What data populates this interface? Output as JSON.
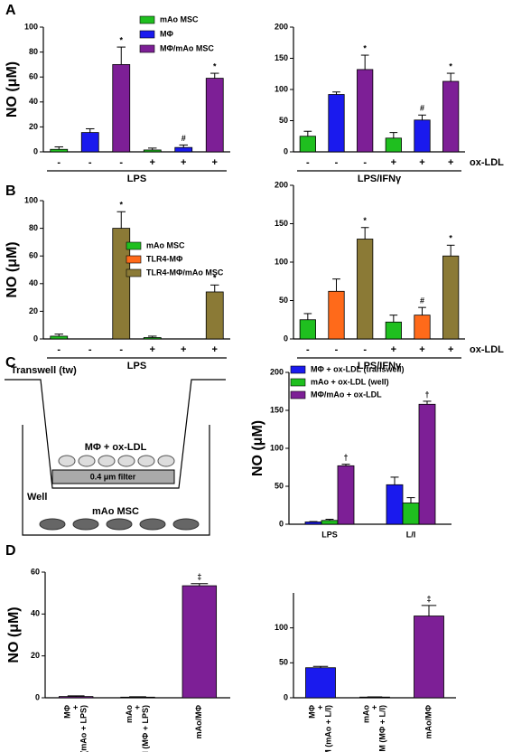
{
  "panel_labels": [
    "A",
    "B",
    "C",
    "D"
  ],
  "diagram": {
    "title": "Transwell (tw)",
    "insert_label": "MΦ + ox-LDL",
    "filter_label": "0.4 μm filter",
    "well_label": "Well",
    "bottom_label": "mAo MSC"
  },
  "chart_data": [
    {
      "type": "bar",
      "ylabel": "NO (μM)",
      "ylim": [
        0,
        100
      ],
      "yticks": [
        0,
        20,
        40,
        60,
        80,
        100
      ],
      "categories": [
        "-",
        "-",
        "-",
        "+",
        "+",
        "+"
      ],
      "group_label": "LPS",
      "series": [
        {
          "name": "mAo MSC",
          "color": "#1fbf1f",
          "values": [
            2,
            null,
            null,
            1.5,
            null,
            null
          ],
          "errors": [
            2,
            null,
            null,
            1.5,
            null,
            null
          ],
          "significance": [
            null,
            null,
            null,
            null,
            null,
            null
          ]
        },
        {
          "name": "MΦ",
          "color": "#1a1aee",
          "values": [
            null,
            15.5,
            null,
            null,
            3.5,
            null
          ],
          "errors": [
            null,
            3,
            null,
            null,
            2,
            null
          ],
          "significance": [
            null,
            null,
            null,
            null,
            "#",
            null
          ]
        },
        {
          "name": "MΦ/mAo MSC",
          "color": "#7d1f96",
          "values": [
            null,
            null,
            70,
            null,
            null,
            59
          ],
          "errors": [
            null,
            null,
            14,
            null,
            null,
            4
          ],
          "significance": [
            null,
            null,
            "*",
            null,
            null,
            "*"
          ]
        }
      ]
    },
    {
      "type": "bar",
      "ylim": [
        0,
        200
      ],
      "yticks": [
        0,
        50,
        100,
        150,
        200
      ],
      "categories": [
        "-",
        "-",
        "-",
        "+",
        "+",
        "+"
      ],
      "row_label": "ox-LDL",
      "group_label": "LPS/IFNγ",
      "values": [
        25,
        92,
        132,
        22,
        51,
        113
      ],
      "errors": [
        8,
        4,
        23,
        9,
        8,
        13
      ],
      "colors": [
        "#1fbf1f",
        "#1a1aee",
        "#7d1f96",
        "#1fbf1f",
        "#1a1aee",
        "#7d1f96"
      ],
      "significance": [
        null,
        null,
        "*",
        null,
        "#",
        "*"
      ]
    },
    {
      "type": "bar",
      "ylabel": "NO (μM)",
      "ylim": [
        0,
        100
      ],
      "yticks": [
        0,
        20,
        40,
        60,
        80,
        100
      ],
      "categories": [
        "-",
        "-",
        "-",
        "+",
        "+",
        "+"
      ],
      "group_label": "LPS",
      "series": [
        {
          "name": "mAo MSC",
          "color": "#1fbf1f",
          "values": [
            2,
            null,
            null,
            1,
            null,
            null
          ],
          "errors": [
            1.5,
            null,
            null,
            1,
            null,
            null
          ],
          "significance": [
            null,
            null,
            null,
            null,
            null,
            null
          ]
        },
        {
          "name": "TLR4-MΦ",
          "color": "#ff6a1a",
          "values": [
            null,
            0,
            null,
            null,
            0,
            null
          ],
          "errors": [
            null,
            null,
            null,
            null,
            null,
            null
          ],
          "significance": [
            null,
            null,
            null,
            null,
            null,
            null
          ]
        },
        {
          "name": "TLR4-MΦ/mAo MSC",
          "color": "#8b7a36",
          "values": [
            null,
            null,
            80,
            null,
            null,
            34
          ],
          "errors": [
            null,
            null,
            12,
            null,
            null,
            5
          ],
          "significance": [
            null,
            null,
            "*",
            null,
            null,
            "*"
          ]
        }
      ]
    },
    {
      "type": "bar",
      "ylim": [
        0,
        200
      ],
      "yticks": [
        0,
        50,
        100,
        150,
        200
      ],
      "categories": [
        "-",
        "-",
        "-",
        "+",
        "+",
        "+"
      ],
      "row_label": "ox-LDL",
      "group_label": "LPS/IFNγ",
      "values": [
        25,
        62,
        130,
        22,
        31,
        108
      ],
      "errors": [
        8,
        16,
        15,
        9,
        10,
        14
      ],
      "colors": [
        "#1fbf1f",
        "#ff6a1a",
        "#8b7a36",
        "#1fbf1f",
        "#ff6a1a",
        "#8b7a36"
      ],
      "significance": [
        null,
        null,
        "*",
        null,
        "#",
        "*"
      ]
    },
    {
      "type": "bar",
      "ylabel": "NO (μM)",
      "ylim": [
        0,
        200
      ],
      "yticks": [
        0,
        50,
        100,
        150,
        200
      ],
      "categories": [
        "LPS",
        "L/I"
      ],
      "series": [
        {
          "name": "MΦ + ox-LDL (transwell)",
          "color": "#1a1aee",
          "values": [
            3,
            52
          ],
          "errors": [
            0.5,
            10
          ],
          "significance": [
            null,
            null
          ]
        },
        {
          "name": "mAo + ox-LDL (well)",
          "color": "#1fbf1f",
          "values": [
            5,
            28
          ],
          "errors": [
            1.5,
            7
          ],
          "significance": [
            null,
            null
          ]
        },
        {
          "name": "MΦ/mAo + ox-LDL",
          "color": "#7d1f96",
          "values": [
            77,
            158
          ],
          "errors": [
            2,
            4
          ],
          "significance": [
            "†",
            "†"
          ]
        }
      ]
    },
    {
      "type": "bar",
      "ylabel": "NO (μM)",
      "ylim": [
        0,
        60
      ],
      "yticks": [
        0,
        20,
        40,
        60
      ],
      "categories": [
        [
          "MΦ",
          "+",
          "CM (mAo + LPS)"
        ],
        [
          "mAo",
          "+",
          "CM (MΦ + LPS)"
        ],
        [
          "mAo/MΦ"
        ]
      ],
      "values": [
        0.6,
        0.3,
        53.5
      ],
      "errors": [
        0.3,
        0.2,
        1
      ],
      "colors": [
        "#7d1f96",
        "#7d1f96",
        "#7d1f96"
      ],
      "significance": [
        null,
        null,
        "‡"
      ]
    },
    {
      "type": "bar",
      "ylim": [
        0,
        150
      ],
      "yticks": [
        0,
        50,
        100
      ],
      "categories": [
        [
          "MΦ",
          "+",
          "CM (mAo + L/I)"
        ],
        [
          "mAo",
          "+",
          "CM (MΦ + L/I)"
        ],
        [
          "mAo/MΦ"
        ]
      ],
      "values": [
        43,
        1,
        117
      ],
      "errors": [
        2,
        0.3,
        15
      ],
      "colors": [
        "#1a1aee",
        "#7d1f96",
        "#7d1f96"
      ],
      "significance": [
        null,
        null,
        "‡"
      ]
    }
  ]
}
